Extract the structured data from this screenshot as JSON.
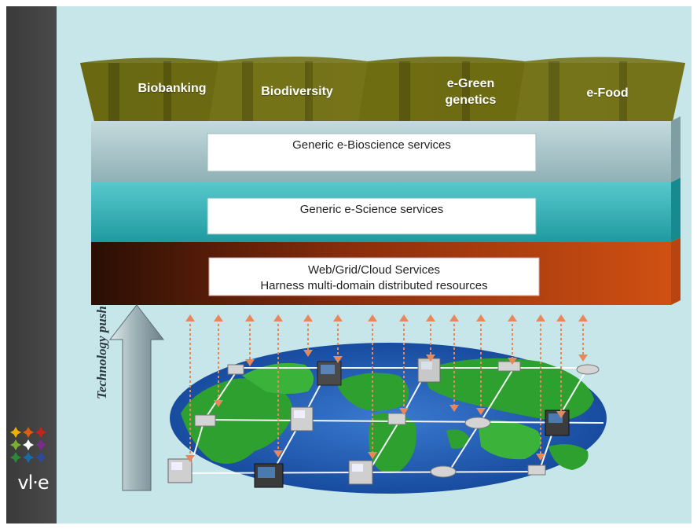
{
  "domains": {
    "biobanking": "Biobanking",
    "biodiversity": "Biodiversity",
    "e_green_line1": "e-Green",
    "e_green_line2": "genetics",
    "e_food": "e-Food"
  },
  "layers": {
    "bioscience": "Generic e-Bioscience services",
    "escience": "Generic e-Science services",
    "grid_line1": "Web/Grid/Cloud Services",
    "grid_line2": "Harness multi-domain distributed resources"
  },
  "technology_push": "Technology push",
  "logo": {
    "text": "vl·e",
    "colors": [
      "#f0b000",
      "#e05a10",
      "#c8201a",
      "#78b030",
      "#ffffff",
      "#7a2a90",
      "#2a8a3a",
      "#1a6aa8",
      "#2a4aa0"
    ]
  },
  "colors": {
    "background": "#c6e6ea",
    "sidebar": "#3f3f3f",
    "domain_band": "#6b6a10",
    "bioscience_layer": "#a8c4c8",
    "escience_layer": "#3ab4b8",
    "grid_layer": "#a03a10",
    "ocean": "#1f5fb0",
    "land": "#2ea030",
    "arrow": "#e8885a"
  }
}
